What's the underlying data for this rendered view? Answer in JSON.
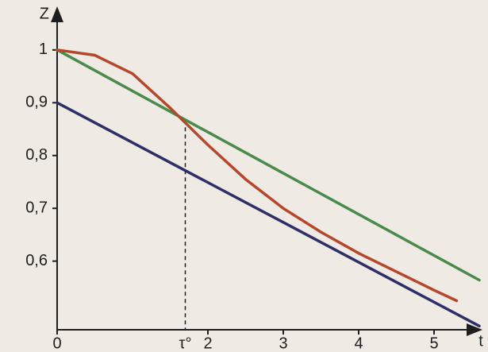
{
  "chart_data": {
    "type": "line",
    "x_label": "t",
    "y_label": "Z",
    "xlim": [
      0,
      5.6
    ],
    "ylim": [
      0.47,
      1.072
    ],
    "xticks": [
      0,
      2,
      3,
      4,
      5
    ],
    "yticks": [
      {
        "value": 0.6,
        "label": "0,6"
      },
      {
        "value": 0.7,
        "label": "0,7"
      },
      {
        "value": 0.8,
        "label": "0,8"
      },
      {
        "value": 0.9,
        "label": "0,9"
      },
      1
    ],
    "annotation": {
      "text": "τ°",
      "x": 1.7,
      "y": 0.867
    },
    "series": [
      {
        "color": "#4a8a4a",
        "x": [
          0,
          5.6
        ],
        "values": [
          1,
          0.564
        ]
      },
      {
        "color": "#2e2f66",
        "x": [
          0,
          5.6
        ],
        "values": [
          0.9,
          0.477
        ]
      },
      {
        "color": "#b5482c",
        "x": [
          0,
          0.5,
          1,
          1.5,
          2,
          2.5,
          3,
          3.5,
          4,
          4.5,
          5,
          5.3
        ],
        "values": [
          1,
          0.99,
          0.955,
          0.89,
          0.82,
          0.755,
          0.7,
          0.655,
          0.615,
          0.58,
          0.545,
          0.525
        ]
      }
    ]
  }
}
